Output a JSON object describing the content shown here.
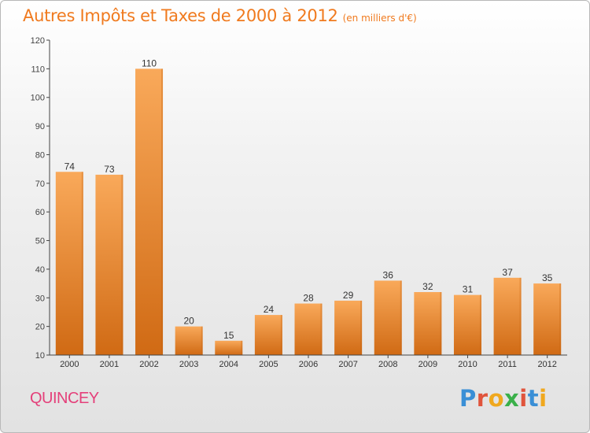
{
  "title": "Autres Impôts et Taxes de 2000 à 2012",
  "subtitle": "(en milliers d'€)",
  "commune": "QUINCEY",
  "logo": {
    "text": "Proxiti",
    "colors": [
      "#3a8fd6",
      "#e0543c",
      "#f0a81e",
      "#3ab04a",
      "#e0543c",
      "#3a8fd6",
      "#f0a81e"
    ]
  },
  "colors": {
    "title": "#f07a1e",
    "commune": "#e4407a",
    "bar_top": "#f9a95a",
    "bar_bottom": "#d06a14",
    "axis": "#444444"
  },
  "chart_data": {
    "type": "bar",
    "categories": [
      "2000",
      "2001",
      "2002",
      "2003",
      "2004",
      "2005",
      "2006",
      "2007",
      "2008",
      "2009",
      "2010",
      "2011",
      "2012"
    ],
    "values": [
      74,
      73,
      110,
      20,
      15,
      24,
      28,
      29,
      36,
      32,
      31,
      37,
      35
    ],
    "data_labels": [
      "74",
      "73",
      "110",
      "20",
      "15",
      "24",
      "28",
      "29",
      "36",
      "32",
      "31",
      "37",
      "35"
    ],
    "ylim": [
      10,
      120
    ],
    "yticks": [
      10,
      20,
      30,
      40,
      50,
      60,
      70,
      80,
      90,
      100,
      110,
      120
    ],
    "grid": false,
    "legend": "none"
  }
}
